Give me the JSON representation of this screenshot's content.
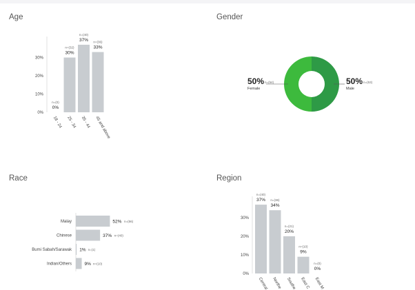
{
  "panels": {
    "age": {
      "title": "Age"
    },
    "gender": {
      "title": "Gender"
    },
    "race": {
      "title": "Race"
    },
    "region": {
      "title": "Region"
    }
  },
  "chart_data": [
    {
      "id": "age",
      "type": "bar",
      "title": "Age",
      "categories": [
        "18 - 24",
        "25 - 34",
        "35 - 44",
        "45 and above"
      ],
      "values": [
        0,
        30,
        37,
        33
      ],
      "value_labels": [
        "0%",
        "30%",
        "37%",
        "33%"
      ],
      "n_labels": [
        "n=(0)",
        "n=(32)",
        "n=(40)",
        "n=(36)"
      ],
      "yticks": [
        "0%",
        "10%",
        "20%",
        "30%"
      ],
      "ylim": [
        0,
        40
      ],
      "bar_color": "#c8ccd0"
    },
    {
      "id": "gender",
      "type": "pie",
      "title": "Gender",
      "donut": true,
      "slices": [
        {
          "label": "Female",
          "value": 50,
          "value_label": "50%",
          "n_label": "n=(54)",
          "color": "#3dba3d"
        },
        {
          "label": "Male",
          "value": 50,
          "value_label": "50%",
          "n_label": "n=(53)",
          "color": "#2e9a46"
        }
      ]
    },
    {
      "id": "race",
      "type": "bar",
      "orientation": "horizontal",
      "title": "Race",
      "categories": [
        "Malay",
        "Chinese",
        "Bumi Sabah/Sarawak",
        "Indian/Others"
      ],
      "values": [
        52,
        37,
        1,
        9
      ],
      "value_labels": [
        "52%",
        "37%",
        "1%",
        "9%"
      ],
      "n_labels": [
        "n=(56)",
        "n=(40)",
        "n=(1)",
        "n=(10)"
      ],
      "xlim": [
        0,
        100
      ],
      "bar_color": "#c8ccd0"
    },
    {
      "id": "region",
      "type": "bar",
      "title": "Region",
      "categories": [
        "Central",
        "Northern",
        "Southern",
        "East Coast",
        "East Malaysia"
      ],
      "category_labels_visible": [
        "Central",
        "Northe",
        "Southe",
        "East C",
        "East M"
      ],
      "values": [
        37,
        34,
        20,
        9,
        0
      ],
      "value_labels": [
        "37%",
        "34%",
        "20%",
        "9%",
        "0%"
      ],
      "n_labels": [
        "n=(40)",
        "n=(36)",
        "n=(21)",
        "n=(10)",
        "n=(0)"
      ],
      "yticks": [
        "0%",
        "10%",
        "20%",
        "30%"
      ],
      "ylim": [
        0,
        40
      ],
      "bar_color": "#c8ccd0"
    }
  ]
}
